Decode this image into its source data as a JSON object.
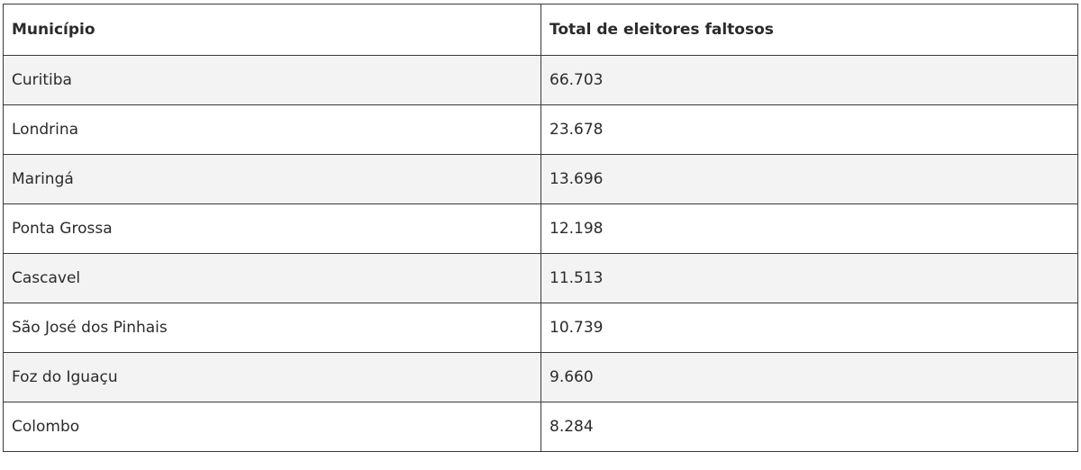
{
  "table": {
    "headers": [
      "Município",
      "Total de eleitores faltosos"
    ],
    "rows": [
      [
        "Curitiba",
        "66.703"
      ],
      [
        "Londrina",
        "23.678"
      ],
      [
        "Maringá",
        "13.696"
      ],
      [
        "Ponta Grossa",
        "12.198"
      ],
      [
        "Cascavel",
        "11.513"
      ],
      [
        "São José dos Pinhais",
        "10.739"
      ],
      [
        "Foz do Iguaçu",
        "9.660"
      ],
      [
        "Colombo",
        "8.284"
      ]
    ]
  }
}
